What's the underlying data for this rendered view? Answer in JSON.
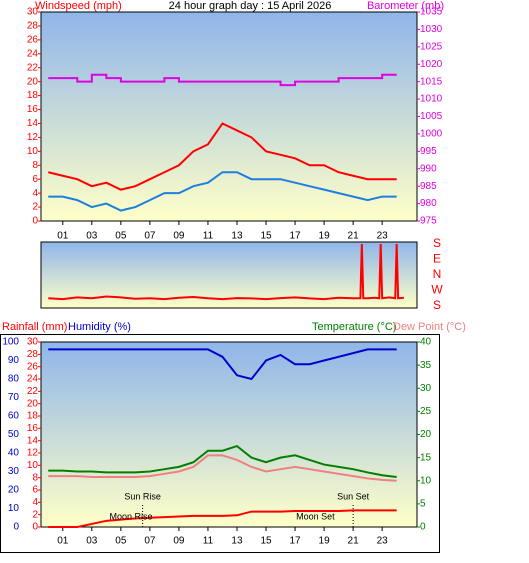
{
  "chart_data": [
    {
      "type": "line",
      "title": "24 hour graph day : 15 April 2026",
      "y_label": "Windspeed (mph)",
      "y2_label": "Barometer (mb)",
      "x": [
        0,
        1,
        2,
        3,
        4,
        5,
        6,
        7,
        8,
        9,
        10,
        11,
        12,
        13,
        14,
        15,
        16,
        17,
        18,
        19,
        20,
        21,
        22,
        23,
        24
      ],
      "xlim": [
        -0.5,
        25.4
      ],
      "xticks": [
        {
          "value": 1,
          "label": "01"
        },
        {
          "value": 3,
          "label": "03"
        },
        {
          "value": 5,
          "label": "05"
        },
        {
          "value": 7,
          "label": "07"
        },
        {
          "value": 9,
          "label": "09"
        },
        11,
        13,
        15,
        17,
        19,
        21,
        23
      ],
      "ylim": [
        0,
        30
      ],
      "yticks": [
        0,
        2,
        4,
        6,
        8,
        10,
        12,
        14,
        16,
        18,
        20,
        22,
        24,
        26,
        28,
        30
      ],
      "y2lim": [
        975,
        1035
      ],
      "y2ticks": [
        975,
        980,
        985,
        990,
        995,
        1000,
        1005,
        1010,
        1015,
        1020,
        1025,
        1030,
        1035
      ],
      "series": [
        {
          "color": "#ff0000",
          "values": [
            7,
            6.5,
            6,
            5,
            5.5,
            4.5,
            5,
            6,
            7,
            8,
            10,
            11,
            14,
            13,
            12,
            10,
            9.5,
            9,
            8,
            8,
            7,
            6.5,
            6,
            6,
            6
          ]
        },
        {
          "color": "#1e7fe0",
          "values": [
            3.5,
            3.5,
            3,
            2,
            2.5,
            1.5,
            2,
            3,
            4,
            4,
            5,
            5.5,
            7,
            7,
            6,
            6,
            6,
            5.5,
            5,
            4.5,
            4,
            3.5,
            3,
            3.5,
            3.5
          ]
        },
        {
          "color": "#e000e0",
          "axis": "y2",
          "step": true,
          "values": [
            1016,
            1016,
            1015,
            1017,
            1016,
            1015,
            1015,
            1015,
            1016,
            1015,
            1015,
            1015,
            1015,
            1015,
            1015,
            1015,
            1014,
            1015,
            1015,
            1015,
            1016,
            1016,
            1016,
            1017,
            1017
          ]
        }
      ]
    },
    {
      "type": "line",
      "x": [
        0,
        1,
        2,
        3,
        4,
        5,
        6,
        7,
        8,
        9,
        10,
        11,
        12,
        13,
        14,
        15,
        16,
        17,
        18,
        19,
        20,
        21,
        21.5,
        21.6,
        21.7,
        22,
        22.5,
        22.8,
        22.9,
        23,
        23.5,
        23.9,
        24,
        24.1,
        24.5
      ],
      "xlim": [
        -0.5,
        25.4
      ],
      "ylim": [
        180,
        540
      ],
      "yticks": [
        {
          "value": 540,
          "label": "S"
        },
        {
          "value": 450,
          "label": "E"
        },
        {
          "value": 360,
          "label": "N"
        },
        {
          "value": 270,
          "label": "W"
        },
        {
          "value": 180,
          "label": "S"
        }
      ],
      "series": [
        {
          "color": "#ff0000",
          "values": [
            225,
            220,
            230,
            225,
            235,
            230,
            222,
            225,
            220,
            228,
            232,
            225,
            220,
            226,
            224,
            220,
            226,
            230,
            224,
            220,
            228,
            225,
            225,
            540,
            225,
            225,
            228,
            225,
            540,
            225,
            230,
            225,
            540,
            225,
            228
          ]
        }
      ]
    },
    {
      "type": "line",
      "x": [
        0,
        1,
        2,
        3,
        4,
        5,
        6,
        7,
        8,
        9,
        10,
        11,
        12,
        13,
        14,
        15,
        16,
        17,
        18,
        19,
        20,
        21,
        22,
        23,
        24
      ],
      "xlim": [
        -0.5,
        25.4
      ],
      "xticks": [
        {
          "value": 1,
          "label": "01"
        },
        {
          "value": 3,
          "label": "03"
        },
        {
          "value": 5,
          "label": "05"
        },
        {
          "value": 7,
          "label": "07"
        },
        {
          "value": 9,
          "label": "09"
        },
        11,
        13,
        15,
        17,
        19,
        21,
        23
      ],
      "ylim": [
        0,
        30
      ],
      "yticks": [
        0,
        2,
        4,
        6,
        8,
        10,
        12,
        14,
        16,
        18,
        20,
        22,
        24,
        26,
        28,
        30
      ],
      "y2lim": [
        0,
        40
      ],
      "y2ticks": [
        0,
        5,
        10,
        15,
        20,
        25,
        30,
        35,
        40
      ],
      "y3lim": [
        0,
        100
      ],
      "y3ticks": [
        0,
        10,
        20,
        30,
        40,
        50,
        60,
        70,
        80,
        90,
        100
      ],
      "series": [
        {
          "name": "Rainfall (mm)",
          "color": "#ff0000",
          "values": [
            0,
            0,
            0,
            0.5,
            1,
            1.2,
            1.4,
            1.5,
            1.6,
            1.7,
            1.8,
            1.8,
            1.8,
            1.9,
            2.5,
            2.5,
            2.5,
            2.6,
            2.6,
            2.6,
            2.6,
            2.7,
            2.7,
            2.7,
            2.7
          ]
        },
        {
          "name": "Humidity (%)",
          "color": "#0000cc",
          "axis": "y3",
          "values": [
            96,
            96,
            96,
            96,
            96,
            96,
            96,
            96,
            96,
            96,
            96,
            96,
            92,
            82,
            80,
            90,
            93,
            88,
            88,
            90,
            92,
            94,
            96,
            96,
            96
          ]
        },
        {
          "name": "Temperature (°C)",
          "color": "#008000",
          "axis": "y2",
          "values": [
            12.2,
            12.2,
            12,
            12,
            11.8,
            11.8,
            11.8,
            12,
            12.5,
            13,
            14,
            16.5,
            16.5,
            17.5,
            15,
            14,
            15,
            15.5,
            14.5,
            13.5,
            13,
            12.5,
            11.8,
            11.2,
            10.8
          ]
        },
        {
          "name": "Dew Point (°C)",
          "color": "#f08080",
          "axis": "y2",
          "values": [
            11,
            11,
            11,
            10.8,
            10.8,
            10.8,
            10.8,
            11,
            11.5,
            12,
            13,
            15.5,
            15.5,
            14.5,
            13,
            12,
            12.5,
            13,
            12.5,
            12,
            11.5,
            11,
            10.5,
            10.2,
            10
          ]
        }
      ],
      "annotations": [
        {
          "text": "Sun Rise",
          "x": 6.5
        },
        {
          "text": "Sun Set",
          "x": 21
        },
        {
          "text": "Moon Rise",
          "x": 5.7
        },
        {
          "text": "Moon Set",
          "x": 18.4
        }
      ]
    }
  ]
}
